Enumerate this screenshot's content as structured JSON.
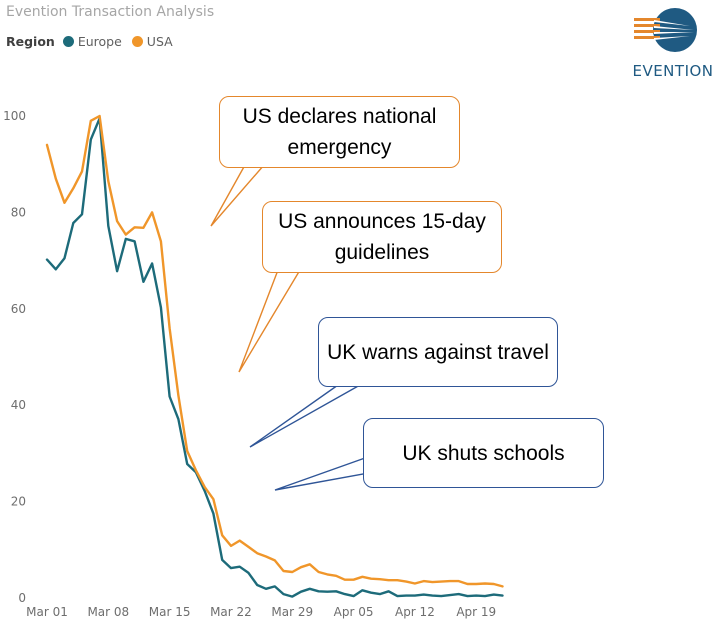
{
  "header": {
    "title": "Evention Transaction Analysis",
    "legend_label": "Region",
    "legend_items": [
      {
        "name": "Europe",
        "color": "#1d6b7a"
      },
      {
        "name": "USA",
        "color": "#f0962a"
      }
    ]
  },
  "logo": {
    "text": "EVENTION",
    "color": "#1f5a82",
    "accent": "#e4872c"
  },
  "annotations": [
    {
      "text": "US declares national emergency",
      "color": "#e4872c"
    },
    {
      "text": "US announces 15-day guidelines",
      "color": "#e4872c"
    },
    {
      "text": "UK warns against travel",
      "color": "#2f5597"
    },
    {
      "text": "UK shuts schools",
      "color": "#2f5597"
    }
  ],
  "chart_data": {
    "type": "line",
    "title": "Evention Transaction Analysis",
    "xlabel": "",
    "ylabel": "",
    "ylim": [
      0,
      100
    ],
    "yticks": [
      0,
      20,
      40,
      60,
      80,
      100
    ],
    "x_tick_labels": [
      "Mar 01",
      "Mar 08",
      "Mar 15",
      "Mar 22",
      "Mar 29",
      "Apr 05",
      "Apr 12",
      "Apr 19"
    ],
    "x_tick_day_index": [
      0,
      7,
      14,
      21,
      28,
      35,
      42,
      49
    ],
    "grid": false,
    "legend_position": "top-left",
    "series": [
      {
        "name": "Europe",
        "color": "#1d6b7a",
        "values": [
          70.2,
          68.2,
          70.5,
          77.8,
          79.6,
          95.1,
          99.5,
          77.2,
          67.8,
          74.5,
          74.0,
          65.6,
          69.4,
          60.3,
          41.8,
          37.1,
          27.8,
          26.1,
          22.2,
          17.5,
          7.9,
          6.2,
          6.5,
          5.2,
          2.7,
          1.9,
          2.4,
          0.8,
          0.3,
          1.3,
          1.9,
          1.4,
          1.3,
          1.4,
          0.8,
          0.4,
          1.6,
          1.1,
          0.8,
          1.4,
          0.4,
          0.5,
          0.5,
          0.7,
          0.5,
          0.4,
          0.6,
          0.8,
          0.4,
          0.5,
          0.4,
          0.7,
          0.5
        ]
      },
      {
        "name": "USA",
        "color": "#f0962a",
        "values": [
          94.0,
          87.0,
          82.0,
          85.0,
          88.5,
          99.0,
          100.0,
          86.5,
          78.2,
          75.4,
          76.9,
          76.8,
          80.0,
          74.0,
          56.0,
          42.0,
          30.5,
          26.5,
          23.0,
          20.5,
          13.0,
          10.8,
          11.9,
          10.6,
          9.3,
          8.6,
          7.8,
          5.6,
          5.4,
          6.4,
          7.0,
          5.4,
          4.9,
          4.6,
          3.8,
          3.8,
          4.4,
          4.0,
          3.9,
          3.7,
          3.7,
          3.4,
          3.0,
          3.5,
          3.3,
          3.4,
          3.5,
          3.5,
          2.9,
          2.9,
          3.0,
          2.9,
          2.4
        ]
      }
    ]
  }
}
